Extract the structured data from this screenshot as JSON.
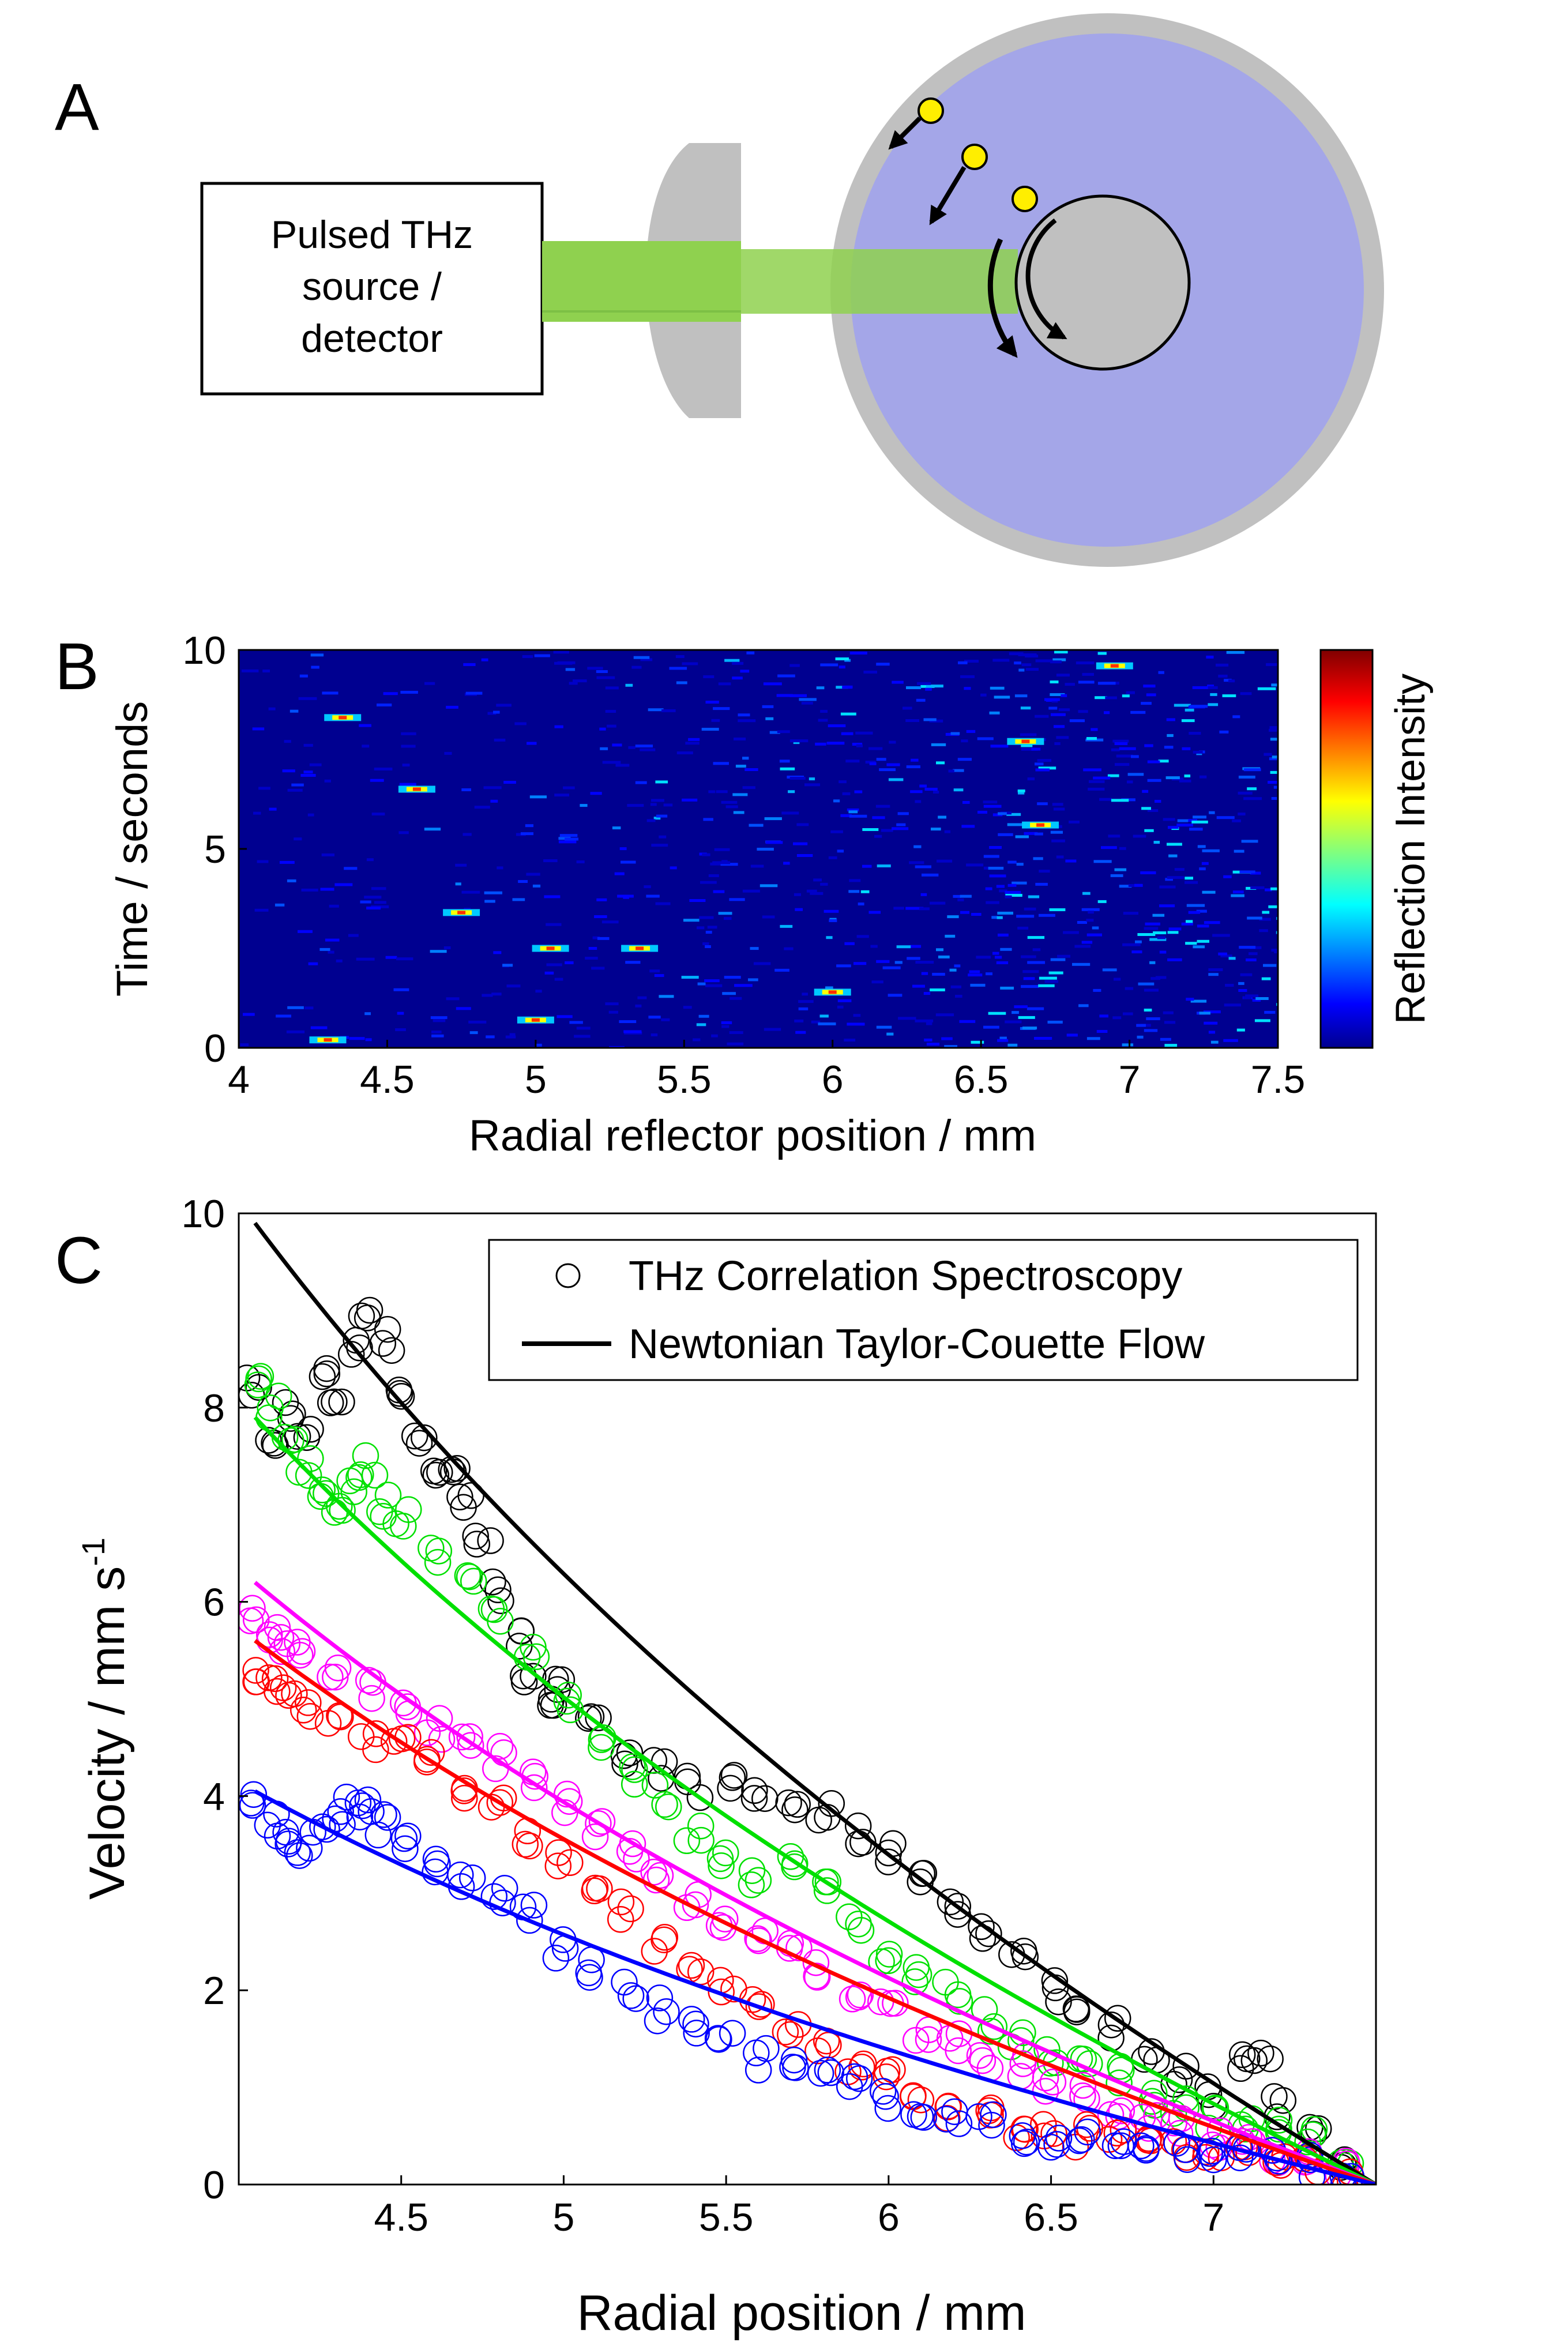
{
  "panels": {
    "a": {
      "letter": "A",
      "source_label_lines": [
        "Pulsed THz",
        "source /",
        "detector"
      ]
    },
    "b": {
      "letter": "B"
    },
    "c": {
      "letter": "C"
    }
  },
  "colors": {
    "beam": "#8fd14f",
    "fluid": "#a4a6e8",
    "housing": "#c0c0c0",
    "reflector": "#ffee00",
    "black_series": "#000000",
    "green_series": "#00e000",
    "magenta_series": "#ff00ff",
    "red_series": "#ff0000",
    "blue_series": "#0000ff"
  },
  "chart_data": [
    {
      "type": "heatmap",
      "panel": "B",
      "xlabel": "Radial reflector position / mm",
      "ylabel": "Time / seconds",
      "colorbar_label": "Reflection Intensity",
      "colormap": "jet",
      "xlim": [
        4,
        7.5
      ],
      "ylim": [
        0,
        10
      ],
      "xticks": [
        "4",
        "4.5",
        "5",
        "5.5",
        "6",
        "6.5",
        "7",
        "7.5"
      ],
      "yticks": [
        "0",
        "5",
        "10"
      ],
      "bright_streaks": [
        {
          "x": 4.35,
          "t": 8.3
        },
        {
          "x": 4.6,
          "t": 6.5
        },
        {
          "x": 4.75,
          "t": 3.4
        },
        {
          "x": 5.05,
          "t": 2.5
        },
        {
          "x": 5.35,
          "t": 2.5
        },
        {
          "x": 5.0,
          "t": 0.7
        },
        {
          "x": 4.3,
          "t": 0.2
        },
        {
          "x": 6.65,
          "t": 7.7
        },
        {
          "x": 6.7,
          "t": 5.6
        },
        {
          "x": 6.95,
          "t": 9.6
        },
        {
          "x": 6.0,
          "t": 1.4
        }
      ]
    },
    {
      "type": "scatter",
      "panel": "C",
      "xlabel": "Radial position / mm",
      "ylabel_main": "Velocity / mm s",
      "ylabel_superscript": "-1",
      "xlim": [
        4.0,
        7.5
      ],
      "ylim": [
        0,
        10
      ],
      "xticks": [
        "4.5",
        "5",
        "5.5",
        "6",
        "6.5",
        "7"
      ],
      "yticks": [
        "0",
        "2",
        "4",
        "6",
        "8",
        "10"
      ],
      "legend_position": "top-right",
      "legend": [
        {
          "marker": "circle",
          "label": "THz Correlation Spectroscopy"
        },
        {
          "marker": "line",
          "label": "Newtonian Taylor-Couette Flow"
        }
      ],
      "series": [
        {
          "color_key": "black_series",
          "fit_v0": 9.9,
          "points_x": [
            4.05,
            4.1,
            4.15,
            4.2,
            4.25,
            4.3,
            4.35,
            4.4,
            4.45,
            4.5,
            4.55,
            4.6,
            4.65,
            4.7,
            4.75,
            4.8,
            4.85,
            4.9,
            4.95,
            5.0,
            5.1,
            5.2,
            5.3,
            5.4,
            5.5,
            5.6,
            5.7,
            5.8,
            5.9,
            6.0,
            6.1,
            6.2,
            6.3,
            6.4,
            6.5,
            6.6,
            6.7,
            6.8,
            6.9,
            7.0,
            7.1,
            7.15,
            7.2,
            7.3,
            7.4
          ],
          "points_y": [
            8.2,
            7.6,
            8.0,
            7.7,
            8.3,
            8.1,
            8.6,
            9.0,
            8.7,
            8.2,
            7.7,
            7.3,
            7.4,
            7.0,
            6.7,
            6.1,
            5.6,
            5.3,
            5.0,
            5.1,
            4.7,
            4.4,
            4.3,
            4.1,
            4.1,
            4.0,
            3.9,
            3.8,
            3.6,
            3.4,
            3.2,
            2.9,
            2.6,
            2.3,
            2.0,
            1.9,
            1.6,
            1.3,
            1.1,
            0.9,
            1.3,
            1.4,
            0.8,
            0.5,
            0.2
          ]
        },
        {
          "color_key": "green_series",
          "fit_v0": 7.9,
          "points_x": [
            4.05,
            4.1,
            4.15,
            4.2,
            4.25,
            4.3,
            4.35,
            4.4,
            4.45,
            4.5,
            4.6,
            4.7,
            4.8,
            4.9,
            5.0,
            5.1,
            5.2,
            5.3,
            5.4,
            5.5,
            5.6,
            5.7,
            5.8,
            5.9,
            6.0,
            6.1,
            6.2,
            6.3,
            6.4,
            6.5,
            6.6,
            6.7,
            6.8,
            6.9,
            7.0,
            7.1,
            7.2,
            7.3,
            7.4
          ],
          "points_y": [
            8.2,
            8.0,
            7.6,
            7.4,
            7.1,
            7.0,
            7.2,
            7.4,
            7.0,
            6.9,
            6.5,
            6.2,
            5.9,
            5.5,
            5.0,
            4.6,
            4.2,
            4.0,
            3.6,
            3.4,
            3.2,
            3.3,
            3.0,
            2.7,
            2.4,
            2.2,
            2.0,
            1.7,
            1.5,
            1.3,
            1.2,
            1.1,
            0.9,
            0.8,
            0.7,
            0.6,
            0.6,
            0.5,
            0.2
          ]
        },
        {
          "color_key": "magenta_series",
          "fit_v0": 6.2,
          "points_x": [
            4.05,
            4.1,
            4.15,
            4.2,
            4.3,
            4.4,
            4.5,
            4.6,
            4.7,
            4.8,
            4.9,
            5.0,
            5.1,
            5.2,
            5.3,
            5.4,
            5.5,
            5.6,
            5.7,
            5.8,
            5.9,
            6.0,
            6.1,
            6.2,
            6.3,
            6.4,
            6.5,
            6.6,
            6.7,
            6.8,
            6.9,
            7.0,
            7.1,
            7.2,
            7.3,
            7.4
          ],
          "points_y": [
            5.9,
            5.7,
            5.6,
            5.5,
            5.3,
            5.1,
            4.9,
            4.7,
            4.6,
            4.4,
            4.2,
            3.9,
            3.7,
            3.4,
            3.2,
            2.9,
            2.7,
            2.5,
            2.4,
            2.2,
            2.0,
            1.8,
            1.6,
            1.5,
            1.3,
            1.2,
            1.0,
            0.9,
            0.8,
            0.7,
            0.6,
            0.5,
            0.4,
            0.35,
            0.3,
            0.15
          ]
        },
        {
          "color_key": "red_series",
          "fit_v0": 5.6,
          "points_x": [
            4.05,
            4.1,
            4.15,
            4.2,
            4.3,
            4.4,
            4.5,
            4.6,
            4.7,
            4.8,
            4.9,
            5.0,
            5.1,
            5.2,
            5.3,
            5.4,
            5.5,
            5.6,
            5.7,
            5.8,
            5.9,
            6.0,
            6.1,
            6.2,
            6.3,
            6.4,
            6.5,
            6.6,
            6.7,
            6.8,
            6.9,
            7.0,
            7.1,
            7.2,
            7.3,
            7.4
          ],
          "points_y": [
            5.2,
            5.1,
            5.0,
            4.9,
            4.8,
            4.6,
            4.5,
            4.4,
            4.1,
            3.9,
            3.6,
            3.3,
            3.1,
            2.8,
            2.5,
            2.3,
            2.1,
            1.8,
            1.6,
            1.4,
            1.2,
            1.1,
            0.9,
            0.8,
            0.7,
            0.6,
            0.6,
            0.5,
            0.5,
            0.45,
            0.4,
            0.35,
            0.3,
            0.3,
            0.25,
            0.1
          ]
        },
        {
          "color_key": "blue_series",
          "fit_v0": 4.05,
          "points_x": [
            4.05,
            4.1,
            4.15,
            4.2,
            4.25,
            4.3,
            4.35,
            4.4,
            4.45,
            4.5,
            4.6,
            4.7,
            4.8,
            4.9,
            5.0,
            5.1,
            5.2,
            5.3,
            5.4,
            5.5,
            5.6,
            5.7,
            5.8,
            5.9,
            6.0,
            6.1,
            6.2,
            6.3,
            6.4,
            6.5,
            6.6,
            6.7,
            6.8,
            6.9,
            7.0,
            7.1,
            7.2,
            7.3,
            7.4
          ],
          "points_y": [
            3.9,
            3.7,
            3.6,
            3.5,
            3.6,
            3.8,
            3.9,
            3.9,
            3.7,
            3.5,
            3.3,
            3.1,
            3.0,
            2.8,
            2.4,
            2.2,
            2.0,
            1.8,
            1.6,
            1.5,
            1.3,
            1.2,
            1.1,
            1.0,
            0.9,
            0.8,
            0.7,
            0.6,
            0.5,
            0.5,
            0.45,
            0.4,
            0.4,
            0.35,
            0.3,
            0.3,
            0.25,
            0.2,
            0.1
          ]
        }
      ]
    }
  ]
}
